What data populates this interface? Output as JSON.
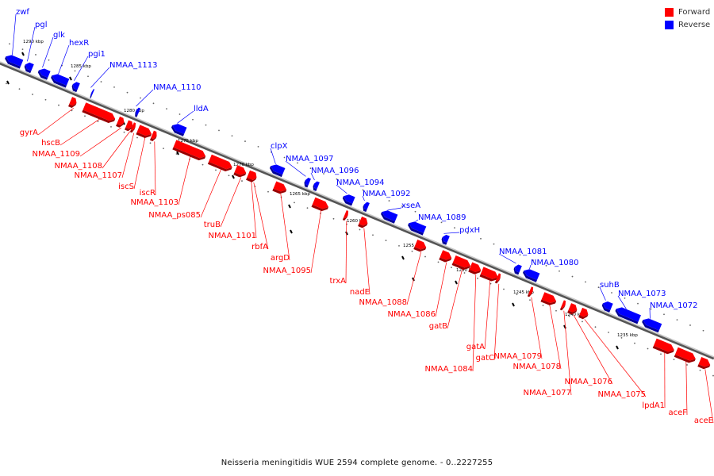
{
  "legend": {
    "forward_label": "Forward",
    "reverse_label": "Reverse",
    "forward_color": "#ff0000",
    "reverse_color": "#0000ff"
  },
  "caption": "Neisseria meningitidis WUE 2594 complete genome. - 0..2227255",
  "ticks": [
    "1290 kbp",
    "1285 kbp",
    "1280 kbp",
    "1275 kbp",
    "1270 kbp",
    "1265 kbp",
    "1260 kbp",
    "1255 kbp",
    "1250 kbp",
    "1245 kbp",
    "1240 kbp",
    "1235 kbp"
  ],
  "reverse_genes": [
    "zwf",
    "pgl",
    "glk",
    "hexR",
    "pgi1",
    "NMAA_1113",
    "NMAA_1110",
    "lldA",
    "clpX",
    "NMAA_1097",
    "NMAA_1096",
    "NMAA_1094",
    "NMAA_1092",
    "xseA",
    "NMAA_1089",
    "pdxH",
    "NMAA_1081",
    "NMAA_1080",
    "suhB",
    "NMAA_1073",
    "NMAA_1072"
  ],
  "forward_genes": [
    "gyrA",
    "hscB",
    "NMAA_1109",
    "NMAA_1108",
    "NMAA_1107",
    "iscS",
    "iscR",
    "NMAA_1103",
    "NMAA_ps085",
    "truB",
    "NMAA_1101",
    "rbfA",
    "argD",
    "NMAA_1095",
    "trxA",
    "nadE",
    "NMAA_1088",
    "NMAA_1086",
    "gatB",
    "NMAA_1084",
    "gatA",
    "gatC",
    "NMAA_1079",
    "NMAA_1078",
    "NMAA_1077",
    "NMAA_1076",
    "NMAA_1075",
    "lpdA1",
    "aceF",
    "aceE"
  ]
}
